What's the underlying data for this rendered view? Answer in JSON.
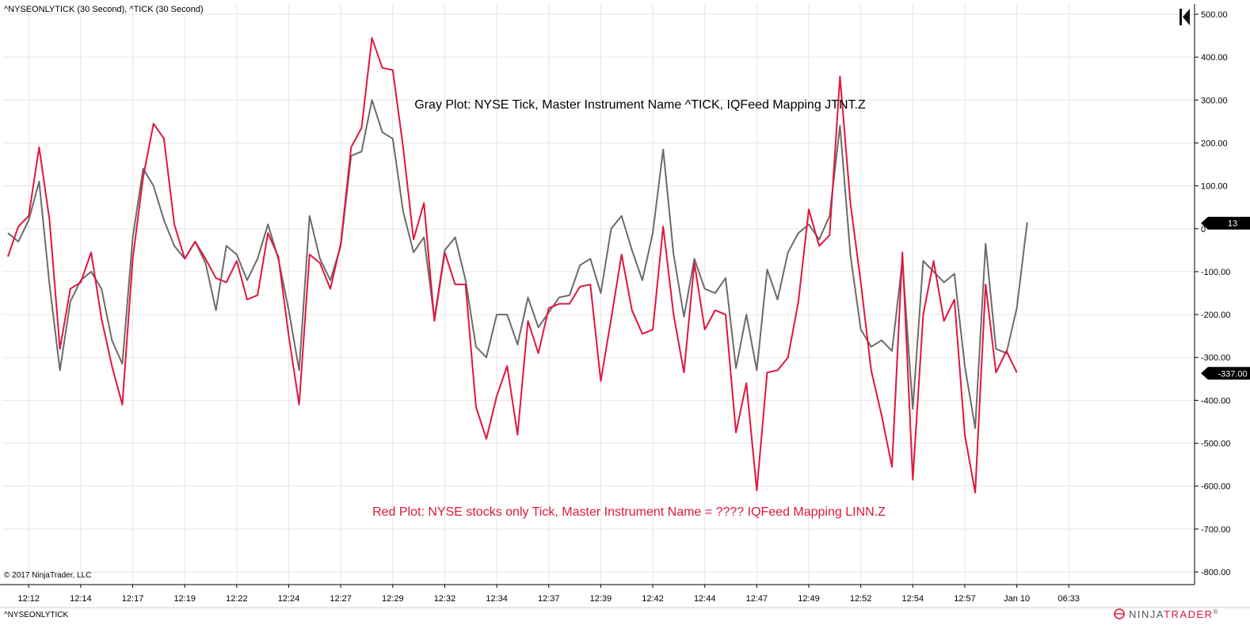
{
  "header": {
    "series_title": "^NYSEONLYTICK (30 Second), ^TICK (30 Second)"
  },
  "footer": {
    "copyright": "© 2017 NinjaTrader, LLC",
    "instrument": "^NYSEONLYTICK",
    "logo_ninja": "NINJA",
    "logo_trader": "TRADER",
    "logo_reg": "®"
  },
  "colors": {
    "red_series": "#e0163f",
    "gray_series": "#6b6b6b",
    "grid": "#e6e6e6",
    "axis": "#000000"
  },
  "icons": {
    "panel_toggle": "collapse-panel-icon",
    "logo": "ninjatrader-logo-icon"
  },
  "chart_data": {
    "type": "line",
    "ylim": [
      -820,
      510
    ],
    "y_ticks": [
      500,
      400,
      300,
      200,
      100,
      0,
      -100,
      -200,
      -300,
      -400,
      -500,
      -600,
      -700,
      -800
    ],
    "y_tick_labels": [
      "500.00",
      "400.00",
      "300.00",
      "200.00",
      "100.00",
      "0",
      "-100.00",
      "-200.00",
      "-300.00",
      "-400.00",
      "-500.00",
      "-600.00",
      "-700.00",
      "-800.00"
    ],
    "x_labels": [
      "12:12",
      "12:14",
      "12:17",
      "12:19",
      "12:22",
      "12:24",
      "12:27",
      "12:29",
      "12:32",
      "12:34",
      "12:37",
      "12:39",
      "12:42",
      "12:44",
      "12:47",
      "12:49",
      "12:52",
      "12:54",
      "12:57",
      "Jan 10",
      "06:33"
    ],
    "x_label_slots": [
      2,
      7,
      12,
      17,
      22,
      27,
      32,
      37,
      42,
      47,
      52,
      57,
      62,
      67,
      72,
      77,
      82,
      87,
      92,
      97,
      102
    ],
    "grid": true,
    "annotations": [
      {
        "text": "Gray Plot: NYSE Tick, Master Instrument Name ^TICK, IQFeed Mapping JTNT.Z",
        "color": "#000000"
      },
      {
        "text": "Red Plot: NYSE stocks only Tick, Master Instrument Name = ???? IQFeed Mapping LINN.Z",
        "color": "#e0163f"
      }
    ],
    "price_markers": [
      {
        "label": "13",
        "value": 13
      },
      {
        "label": "-337.00",
        "value": -337
      }
    ],
    "series": [
      {
        "name": "^TICK",
        "color": "#6b6b6b",
        "values": [
          -10,
          -30,
          20,
          110,
          -130,
          -330,
          -170,
          -120,
          -100,
          -140,
          -260,
          -315,
          -20,
          140,
          100,
          20,
          -40,
          -70,
          -30,
          -80,
          -190,
          -40,
          -60,
          -120,
          -70,
          10,
          -70,
          -190,
          -330,
          30,
          -70,
          -120,
          -40,
          170,
          180,
          300,
          225,
          210,
          40,
          -55,
          -20,
          -210,
          -50,
          -20,
          -120,
          -275,
          -300,
          -200,
          -200,
          -270,
          -160,
          -230,
          -195,
          -160,
          -155,
          -85,
          -70,
          -150,
          0,
          30,
          -50,
          -120,
          -10,
          185,
          -60,
          -205,
          -70,
          -140,
          -150,
          -115,
          -325,
          -200,
          -330,
          -95,
          -165,
          -55,
          -10,
          10,
          -25,
          30,
          240,
          -60,
          -235,
          -275,
          -260,
          -285,
          -75,
          -420,
          -75,
          -100,
          -125,
          -105,
          -320,
          -465,
          -35,
          -280,
          -290,
          -185,
          15
        ]
      },
      {
        "name": "^NYSEONLYTICK",
        "color": "#e0163f",
        "values": [
          -65,
          5,
          30,
          190,
          20,
          -280,
          -140,
          -125,
          -55,
          -210,
          -320,
          -410,
          -70,
          120,
          245,
          210,
          10,
          -70,
          -30,
          -70,
          -115,
          -125,
          -75,
          -165,
          -155,
          -10,
          -65,
          -250,
          -410,
          -60,
          -80,
          -140,
          -35,
          190,
          235,
          445,
          375,
          370,
          190,
          -25,
          60,
          -215,
          -55,
          -130,
          -130,
          -415,
          -490,
          -390,
          -320,
          -480,
          -215,
          -290,
          -185,
          -175,
          -175,
          -135,
          -130,
          -355,
          -210,
          -60,
          -190,
          -245,
          -235,
          5,
          -200,
          -335,
          -80,
          -235,
          -190,
          -200,
          -475,
          -360,
          -610,
          -335,
          -330,
          -300,
          -170,
          45,
          -40,
          -15,
          355,
          60,
          -125,
          -330,
          -435,
          -555,
          -55,
          -585,
          -200,
          -75,
          -215,
          -165,
          -480,
          -615,
          -130,
          -335,
          -285,
          -335
        ]
      }
    ]
  }
}
